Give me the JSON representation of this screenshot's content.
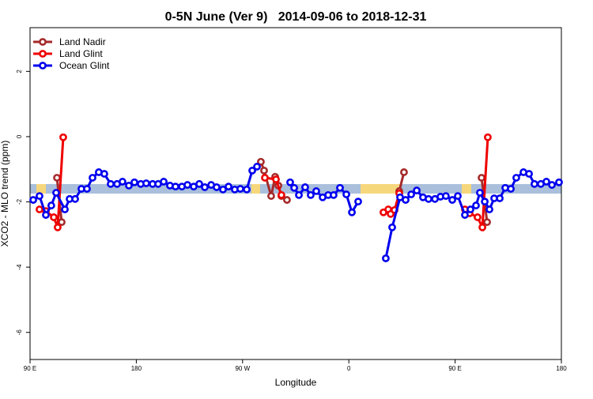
{
  "chart_data": {
    "type": "line",
    "title": "0-5N June (Ver 9)   2014-09-06 to 2018-12-31",
    "x_label": "Longitude",
    "y_label": "XCO2 - MLO trend (ppm)",
    "xlim": [
      90,
      540
    ],
    "ylim": [
      -6.83,
      3.34
    ],
    "xticks": [
      {
        "value": 90,
        "label": "90 E"
      },
      180,
      {
        "value": 270,
        "label": "90 W"
      },
      {
        "value": 360,
        "label": "0"
      },
      {
        "value": 450,
        "label": "90 E"
      },
      {
        "value": 540,
        "label": "180"
      }
    ],
    "yticks": [
      -6,
      -4,
      -2,
      0,
      2
    ],
    "legend": "top-left",
    "series": [
      {
        "name": "Land Nadir",
        "color": "#a52a2a",
        "x": [
          112.8,
          116.8,
          null,
          285.5,
          288.2,
          294.2,
          297.6,
          300.3,
          302.9,
          307.6,
          null,
          402.7,
          406.7,
          null,
          472.4,
          477.1
        ],
        "values": [
          -1.26,
          -2.62,
          null,
          -0.77,
          -1.04,
          -1.82,
          -1.23,
          -1.5,
          -1.82,
          -1.94,
          null,
          -1.67,
          -1.09,
          null,
          -1.26,
          -2.62
        ]
      },
      {
        "name": "Land Glint",
        "color": "#ee0000",
        "x": [
          98.0,
          103.4,
          110.1,
          113.4,
          118.1,
          null,
          288.9,
          298.3,
          302.9,
          null,
          389.3,
          393.4,
          395.4,
          398.7,
          402.7,
          null,
          458.3,
          462.3,
          469.0,
          473.1,
          477.7
        ],
        "values": [
          -2.23,
          -2.28,
          -2.47,
          -2.78,
          -0.02,
          null,
          -1.26,
          -1.31,
          -1.79,
          null,
          -2.32,
          -2.23,
          -2.37,
          -2.25,
          -1.74,
          null,
          -2.23,
          -2.35,
          -2.47,
          -2.78,
          -0.02
        ]
      },
      {
        "name": "Ocean Glint",
        "color": "#0000ee",
        "x": [
          92.7,
          98.0,
          103.4,
          108.0,
          112.1,
          119.5,
          123.5,
          128.2,
          133.5,
          138.2,
          142.9,
          148.2,
          152.9,
          158.3,
          163.7,
          168.3,
          173.7,
          178.4,
          183.8,
          188.4,
          193.8,
          198.5,
          203.2,
          208.5,
          213.2,
          218.6,
          223.3,
          228.6,
          233.3,
          238.0,
          243.4,
          248.0,
          253.4,
          258.1,
          263.4,
          268.1,
          273.5,
          278.2,
          282.2,
          null,
          310.3,
          313.7,
          317.7,
          323.0,
          327.7,
          332.4,
          337.8,
          342.5,
          347.1,
          352.5,
          357.9,
          362.6,
          367.9,
          null,
          391.3,
          396.7,
          403.4,
          408.1,
          412.8,
          417.5,
          422.8,
          427.5,
          432.9,
          437.6,
          442.2,
          447.6,
          452.3,
          458.3,
          463.0,
          467.7,
          471.0,
          475.1,
          479.1,
          483.1,
          487.8,
          492.5,
          497.2,
          501.8,
          507.9,
          512.6,
          517.2,
          522.6,
          527.3,
          532.0,
          538.0
        ],
        "values": [
          -1.94,
          -1.82,
          -2.4,
          -2.11,
          -1.72,
          -2.23,
          -1.91,
          -1.91,
          -1.6,
          -1.6,
          -1.26,
          -1.09,
          -1.14,
          -1.45,
          -1.45,
          -1.38,
          -1.5,
          -1.4,
          -1.45,
          -1.43,
          -1.45,
          -1.45,
          -1.38,
          -1.5,
          -1.53,
          -1.53,
          -1.48,
          -1.53,
          -1.45,
          -1.55,
          -1.48,
          -1.55,
          -1.62,
          -1.53,
          -1.62,
          -1.6,
          -1.62,
          -1.04,
          -0.92,
          null,
          -1.4,
          -1.57,
          -1.79,
          -1.55,
          -1.79,
          -1.67,
          -1.86,
          -1.79,
          -1.79,
          -1.57,
          -1.77,
          -2.32,
          -1.99,
          null,
          -3.73,
          -2.78,
          -1.86,
          -1.94,
          -1.77,
          -1.65,
          -1.86,
          -1.91,
          -1.91,
          -1.84,
          -1.82,
          -1.94,
          -1.82,
          -2.4,
          -2.23,
          -2.11,
          -1.72,
          -1.99,
          -2.23,
          -1.89,
          -1.89,
          -1.57,
          -1.6,
          -1.26,
          -1.09,
          -1.14,
          -1.45,
          -1.45,
          -1.38,
          -1.48,
          -1.4
        ]
      }
    ]
  }
}
